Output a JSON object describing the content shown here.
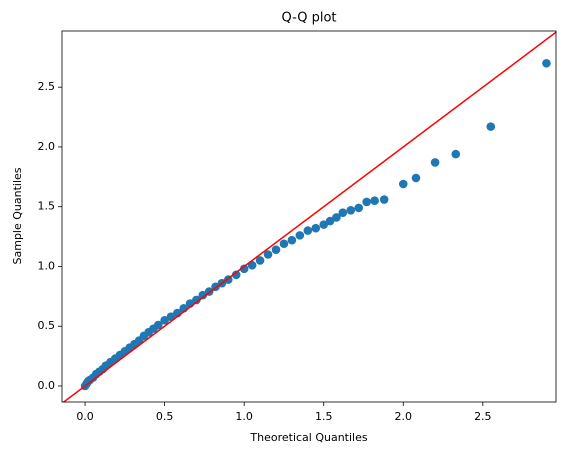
{
  "chart_data": {
    "type": "scatter",
    "title": "Q-Q plot",
    "xlabel": "Theoretical Quantiles",
    "ylabel": "Sample Quantiles",
    "xlim": [
      -0.145,
      2.96
    ],
    "ylim": [
      -0.134,
      2.97
    ],
    "xticks": [
      {
        "value": 0,
        "label": "0.0"
      },
      0.5,
      {
        "value": 1,
        "label": "1.0"
      },
      1.5,
      {
        "value": 2,
        "label": "2.0"
      },
      2.5
    ],
    "yticks": [
      {
        "value": 0,
        "label": "0.0"
      },
      0.5,
      {
        "value": 1,
        "label": "1.0"
      },
      1.5,
      {
        "value": 2,
        "label": "2.0"
      },
      2.5
    ],
    "color": "#1f77b4",
    "x": [
      0.0,
      0.01,
      0.02,
      0.03,
      0.05,
      0.07,
      0.09,
      0.11,
      0.13,
      0.16,
      0.19,
      0.22,
      0.25,
      0.28,
      0.31,
      0.34,
      0.37,
      0.4,
      0.43,
      0.46,
      0.5,
      0.54,
      0.58,
      0.62,
      0.66,
      0.7,
      0.74,
      0.78,
      0.82,
      0.86,
      0.9,
      0.95,
      1.0,
      1.05,
      1.1,
      1.15,
      1.2,
      1.25,
      1.3,
      1.35,
      1.4,
      1.45,
      1.5,
      1.54,
      1.58,
      1.62,
      1.67,
      1.72,
      1.77,
      1.82,
      1.88,
      2.0,
      2.08,
      2.2,
      2.33,
      2.55,
      2.9
    ],
    "values": [
      0.0,
      0.02,
      0.04,
      0.05,
      0.07,
      0.1,
      0.12,
      0.14,
      0.17,
      0.2,
      0.23,
      0.26,
      0.29,
      0.32,
      0.35,
      0.38,
      0.42,
      0.45,
      0.48,
      0.51,
      0.55,
      0.58,
      0.61,
      0.65,
      0.69,
      0.72,
      0.76,
      0.79,
      0.83,
      0.86,
      0.89,
      0.93,
      0.98,
      1.01,
      1.05,
      1.1,
      1.14,
      1.19,
      1.22,
      1.26,
      1.3,
      1.32,
      1.35,
      1.38,
      1.41,
      1.45,
      1.47,
      1.49,
      1.54,
      1.55,
      1.56,
      1.69,
      1.74,
      1.87,
      1.94,
      2.17,
      2.7
    ],
    "reference_line": {
      "color": "#ff0000",
      "x": [
        -0.2,
        3.0
      ],
      "values": [
        -0.2,
        3.0
      ]
    }
  }
}
